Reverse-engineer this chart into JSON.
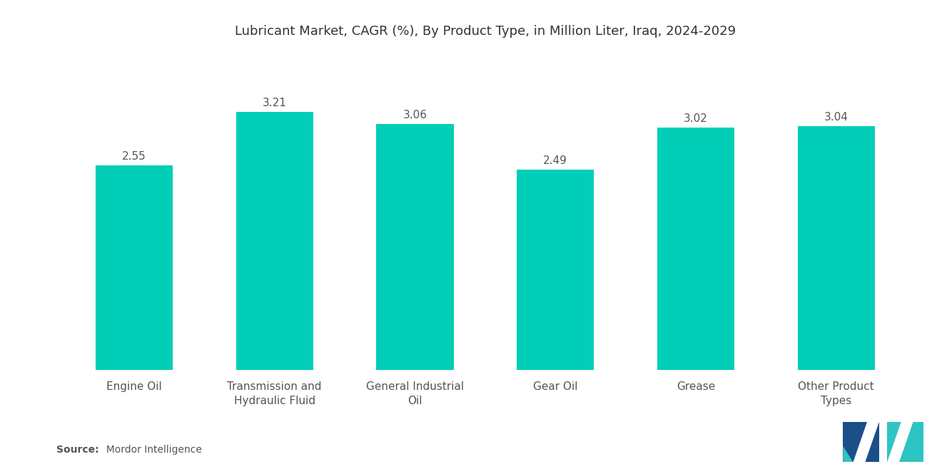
{
  "title": "Lubricant Market, CAGR (%), By Product Type, in Million Liter, Iraq, 2024-2029",
  "categories": [
    "Engine Oil",
    "Transmission and\nHydraulic Fluid",
    "General Industrial\nOil",
    "Gear Oil",
    "Grease",
    "Other Product\nTypes"
  ],
  "values": [
    2.55,
    3.21,
    3.06,
    2.49,
    3.02,
    3.04
  ],
  "bar_color": "#00CEB7",
  "background_color": "#ffffff",
  "title_fontsize": 13,
  "tick_fontsize": 11,
  "value_fontsize": 11,
  "source_bold": "Source:",
  "source_normal": "  Mordor Intelligence",
  "ylim": [
    0,
    3.9
  ],
  "bar_width": 0.55
}
